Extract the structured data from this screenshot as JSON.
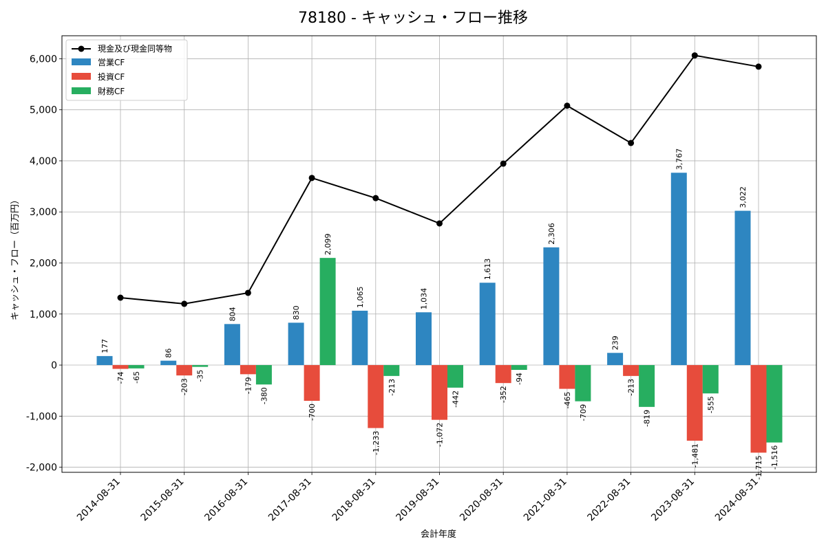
{
  "chart_data": {
    "type": "bar",
    "title": "78180 - キャッシュ・フロー推移",
    "xlabel": "会計年度",
    "ylabel": "キャッシュ・フロー（百万円）",
    "ylim": [
      -2100,
      6450
    ],
    "yticks": [
      -2000,
      -1000,
      0,
      1000,
      2000,
      3000,
      4000,
      5000,
      6000
    ],
    "ytick_labels": [
      "-2,000",
      "-1,000",
      "0",
      "1,000",
      "2,000",
      "3,000",
      "4,000",
      "5,000",
      "6,000"
    ],
    "grid": true,
    "legend_position": "top-left",
    "categories": [
      "2014-08-31",
      "2015-08-31",
      "2016-08-31",
      "2017-08-31",
      "2018-08-31",
      "2019-08-31",
      "2020-08-31",
      "2021-08-31",
      "2022-08-31",
      "2023-08-31",
      "2024-08-31"
    ],
    "line": {
      "name": "現金及び現金同等物",
      "color": "#000000",
      "values": [
        1320,
        1200,
        1415,
        3665,
        3270,
        2775,
        3945,
        5080,
        4350,
        6065,
        5845
      ]
    },
    "series": [
      {
        "name": "営業CF",
        "color": "#2e86c1",
        "values": [
          177,
          86,
          804,
          830,
          1065,
          1034,
          1613,
          2306,
          239,
          3767,
          3022
        ],
        "labels": [
          "177",
          "86",
          "804",
          "830",
          "1,065",
          "1,034",
          "1,613",
          "2,306",
          "239",
          "3,767",
          "3,022"
        ]
      },
      {
        "name": "投資CF",
        "color": "#e74c3c",
        "values": [
          -74,
          -203,
          -179,
          -700,
          -1233,
          -1072,
          -352,
          -465,
          -213,
          -1481,
          -1715
        ],
        "labels": [
          "-74",
          "-203",
          "-179",
          "-700",
          "-1,233",
          "-1,072",
          "-352",
          "-465",
          "-213",
          "-1,481",
          "-1,715"
        ]
      },
      {
        "name": "財務CF",
        "color": "#27ae60",
        "values": [
          -65,
          -35,
          -380,
          2099,
          -213,
          -442,
          -94,
          -709,
          -819,
          -555,
          -1516
        ],
        "labels": [
          "-65",
          "-35",
          "-380",
          "2,099",
          "-213",
          "-442",
          "-94",
          "-709",
          "-819",
          "-555",
          "-1,516"
        ]
      }
    ]
  }
}
